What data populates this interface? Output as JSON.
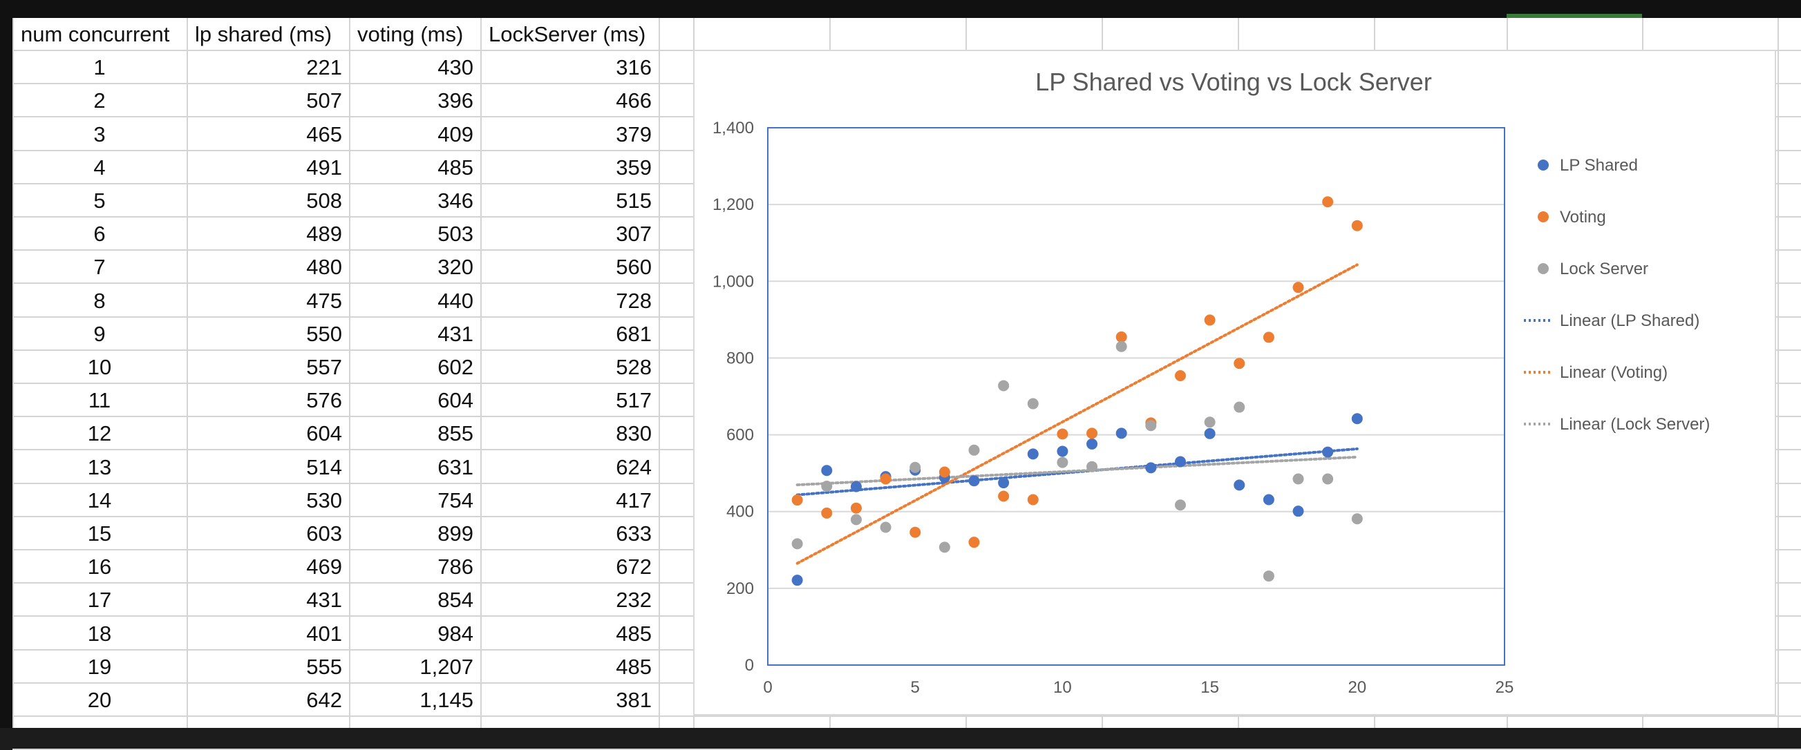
{
  "table": {
    "headers": [
      "num concurrent",
      "lp shared (ms)",
      "voting (ms)",
      "LockServer (ms)"
    ],
    "rows": [
      [
        "1",
        "221",
        "430",
        "316"
      ],
      [
        "2",
        "507",
        "396",
        "466"
      ],
      [
        "3",
        "465",
        "409",
        "379"
      ],
      [
        "4",
        "491",
        "485",
        "359"
      ],
      [
        "5",
        "508",
        "346",
        "515"
      ],
      [
        "6",
        "489",
        "503",
        "307"
      ],
      [
        "7",
        "480",
        "320",
        "560"
      ],
      [
        "8",
        "475",
        "440",
        "728"
      ],
      [
        "9",
        "550",
        "431",
        "681"
      ],
      [
        "10",
        "557",
        "602",
        "528"
      ],
      [
        "11",
        "576",
        "604",
        "517"
      ],
      [
        "12",
        "604",
        "855",
        "830"
      ],
      [
        "13",
        "514",
        "631",
        "624"
      ],
      [
        "14",
        "530",
        "754",
        "417"
      ],
      [
        "15",
        "603",
        "899",
        "633"
      ],
      [
        "16",
        "469",
        "786",
        "672"
      ],
      [
        "17",
        "431",
        "854",
        "232"
      ],
      [
        "18",
        "401",
        "984",
        "485"
      ],
      [
        "19",
        "555",
        "1,207",
        "485"
      ],
      [
        "20",
        "642",
        "1,145",
        "381"
      ]
    ]
  },
  "chart_data": {
    "type": "scatter",
    "title": "LP Shared vs Voting vs Lock Server",
    "xlabel": "",
    "ylabel": "",
    "xlim": [
      0,
      25
    ],
    "ylim": [
      0,
      1400
    ],
    "x_ticks": [
      "0",
      "5",
      "10",
      "15",
      "20",
      "25"
    ],
    "y_ticks": [
      "0",
      "200",
      "400",
      "600",
      "800",
      "1,000",
      "1,200",
      "1,400"
    ],
    "grid": "horizontal",
    "legend_position": "right",
    "x": [
      1,
      2,
      3,
      4,
      5,
      6,
      7,
      8,
      9,
      10,
      11,
      12,
      13,
      14,
      15,
      16,
      17,
      18,
      19,
      20
    ],
    "series": [
      {
        "name": "LP Shared",
        "color": "#4472c4",
        "values": [
          221,
          507,
          465,
          491,
          508,
          489,
          480,
          475,
          550,
          557,
          576,
          604,
          514,
          530,
          603,
          469,
          431,
          401,
          555,
          642
        ]
      },
      {
        "name": "Voting",
        "color": "#ed7d31",
        "values": [
          430,
          396,
          409,
          485,
          346,
          503,
          320,
          440,
          431,
          602,
          604,
          855,
          631,
          754,
          899,
          786,
          854,
          984,
          1207,
          1145
        ]
      },
      {
        "name": "Lock Server",
        "color": "#a5a5a5",
        "values": [
          316,
          466,
          379,
          359,
          515,
          307,
          560,
          728,
          681,
          528,
          517,
          830,
          624,
          417,
          633,
          672,
          232,
          485,
          485,
          381
        ]
      }
    ],
    "trendlines": [
      {
        "name": "Linear (LP Shared)",
        "color": "#4472c4",
        "series": "LP Shared"
      },
      {
        "name": "Linear (Voting)",
        "color": "#ed7d31",
        "series": "Voting"
      },
      {
        "name": "Linear (Lock Server)",
        "color": "#a5a5a5",
        "series": "Lock Server"
      }
    ]
  },
  "colors": {
    "accent_selected_column": "#3a7a3a",
    "plot_border": "#4472c4",
    "gridline": "#d9d9d9"
  }
}
